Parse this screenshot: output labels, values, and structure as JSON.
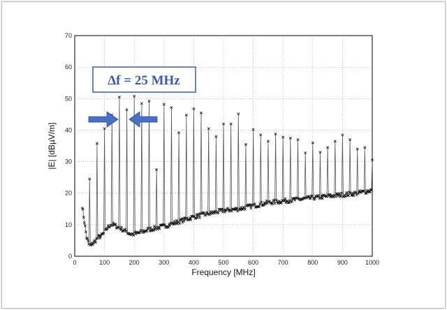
{
  "chart_data": {
    "type": "line",
    "xlabel": "Frequency [MHz]",
    "ylabel": "|E| [dBµV/m]",
    "xlim": [
      0,
      1000
    ],
    "ylim": [
      0,
      70
    ],
    "xticks": [
      0,
      100,
      200,
      300,
      400,
      500,
      600,
      700,
      800,
      900,
      1000
    ],
    "yticks": [
      0,
      10,
      20,
      30,
      40,
      50,
      60,
      70
    ],
    "grid": "dotted",
    "annotation": {
      "text": "Δf = 25 MHz",
      "marker_spacing_MHz": 25
    },
    "colors": {
      "line": "#555555",
      "marker": "#111111",
      "annotation": "#3a5aa8",
      "arrow": "#4a6fc7"
    },
    "peaks": {
      "x": [
        50,
        75,
        100,
        125,
        150,
        175,
        200,
        225,
        250,
        275,
        300,
        325,
        350,
        375,
        400,
        425,
        450,
        475,
        500,
        525,
        550,
        575,
        600,
        625,
        650,
        675,
        700,
        725,
        750,
        775,
        800,
        825,
        850,
        875,
        900,
        925,
        950,
        975,
        1000
      ],
      "y": [
        24.5,
        35.8,
        40.5,
        44.8,
        50.5,
        46.5,
        50.8,
        48.5,
        49.2,
        27.5,
        48.2,
        47.2,
        39.2,
        44.8,
        46.8,
        45.5,
        40.5,
        38.0,
        42.0,
        42.0,
        45.2,
        35.5,
        40.2,
        38.5,
        36.5,
        38.8,
        37.8,
        37.5,
        37.0,
        32.8,
        36.0,
        33.0,
        34.5,
        36.5,
        38.5,
        37.0,
        34.0,
        34.5,
        30.5
      ]
    },
    "floor": {
      "x": [
        25,
        40,
        50,
        60,
        70,
        80,
        90,
        100,
        110,
        120,
        130,
        140,
        150,
        160,
        170,
        180,
        190,
        200,
        220,
        250,
        300,
        350,
        400,
        450,
        500,
        550,
        600,
        650,
        700,
        750,
        800,
        850,
        900,
        950,
        1000
      ],
      "y": [
        16,
        6,
        3,
        4,
        5,
        6,
        6.5,
        7.5,
        9,
        10,
        10,
        9.5,
        9,
        8.5,
        8,
        7.5,
        7,
        7,
        7.5,
        8.5,
        9.5,
        11,
        12.5,
        13.5,
        14.5,
        15,
        16,
        17,
        17.5,
        18,
        18.5,
        19,
        19.5,
        20,
        21
      ]
    }
  }
}
